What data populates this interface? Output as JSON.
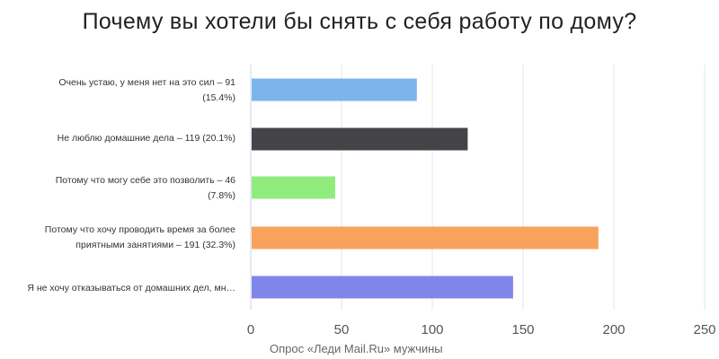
{
  "chart_data": {
    "type": "bar",
    "orientation": "horizontal",
    "title": "Почему вы хотели бы снять с себя работу по дому?",
    "categories": [
      "Очень устаю, у меня нет на это сил – 91 (15.4%)",
      "Не люблю домашние дела – 119 (20.1%)",
      "Потому что могу себе это позволить – 46 (7.8%)",
      "Потому что хочу проводить время за более приятными занятиями – 191 (32.3%)",
      "Я не хочу отказываться от домашних дел, мн…"
    ],
    "values": [
      91,
      119,
      46,
      191,
      144
    ],
    "colors": [
      "#7cb5ec",
      "#434348",
      "#90ed7d",
      "#f7a35c",
      "#8085e9"
    ],
    "xlim": [
      0,
      250
    ],
    "ticks": [
      "0",
      "50",
      "100",
      "150",
      "200",
      "250"
    ],
    "grid": true,
    "caption": "Опрос «Леди Mail.Ru» мужчины"
  }
}
